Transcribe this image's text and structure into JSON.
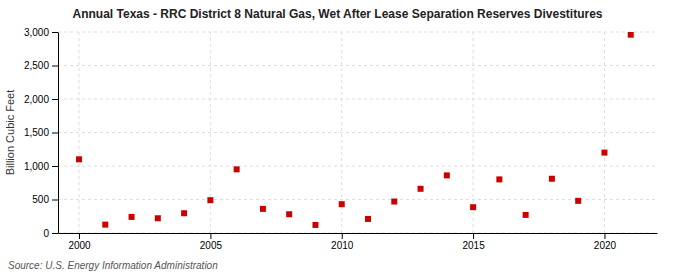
{
  "chart_data": {
    "type": "scatter",
    "title": "Annual Texas - RRC District 8 Natural Gas, Wet After Lease Separation Reserves Divestitures",
    "y_label": "Billion Cubic Feet",
    "source": "Source: U.S. Energy Information Administration",
    "x": [
      2000,
      2001,
      2002,
      2003,
      2004,
      2005,
      2006,
      2007,
      2008,
      2009,
      2010,
      2011,
      2012,
      2013,
      2014,
      2015,
      2016,
      2017,
      2018,
      2019,
      2020,
      2021
    ],
    "values": [
      1100,
      125,
      240,
      220,
      295,
      490,
      950,
      360,
      280,
      120,
      430,
      210,
      470,
      660,
      860,
      385,
      800,
      270,
      810,
      480,
      1200,
      2960
    ],
    "color": "#cc0000",
    "marker": "square",
    "xlim": [
      1999.2,
      2022.0
    ],
    "xticks": [
      2000,
      2005,
      2010,
      2015,
      2020
    ],
    "ylim": [
      0,
      3000
    ],
    "yticks": [
      0,
      500,
      {
        "value": 1000,
        "label": "1,000"
      },
      {
        "value": 1500,
        "label": "1,500"
      },
      {
        "value": 2000,
        "label": "2,000"
      },
      {
        "value": 2500,
        "label": "2,500"
      },
      {
        "value": 3000,
        "label": "3,000"
      }
    ],
    "grid": true
  }
}
